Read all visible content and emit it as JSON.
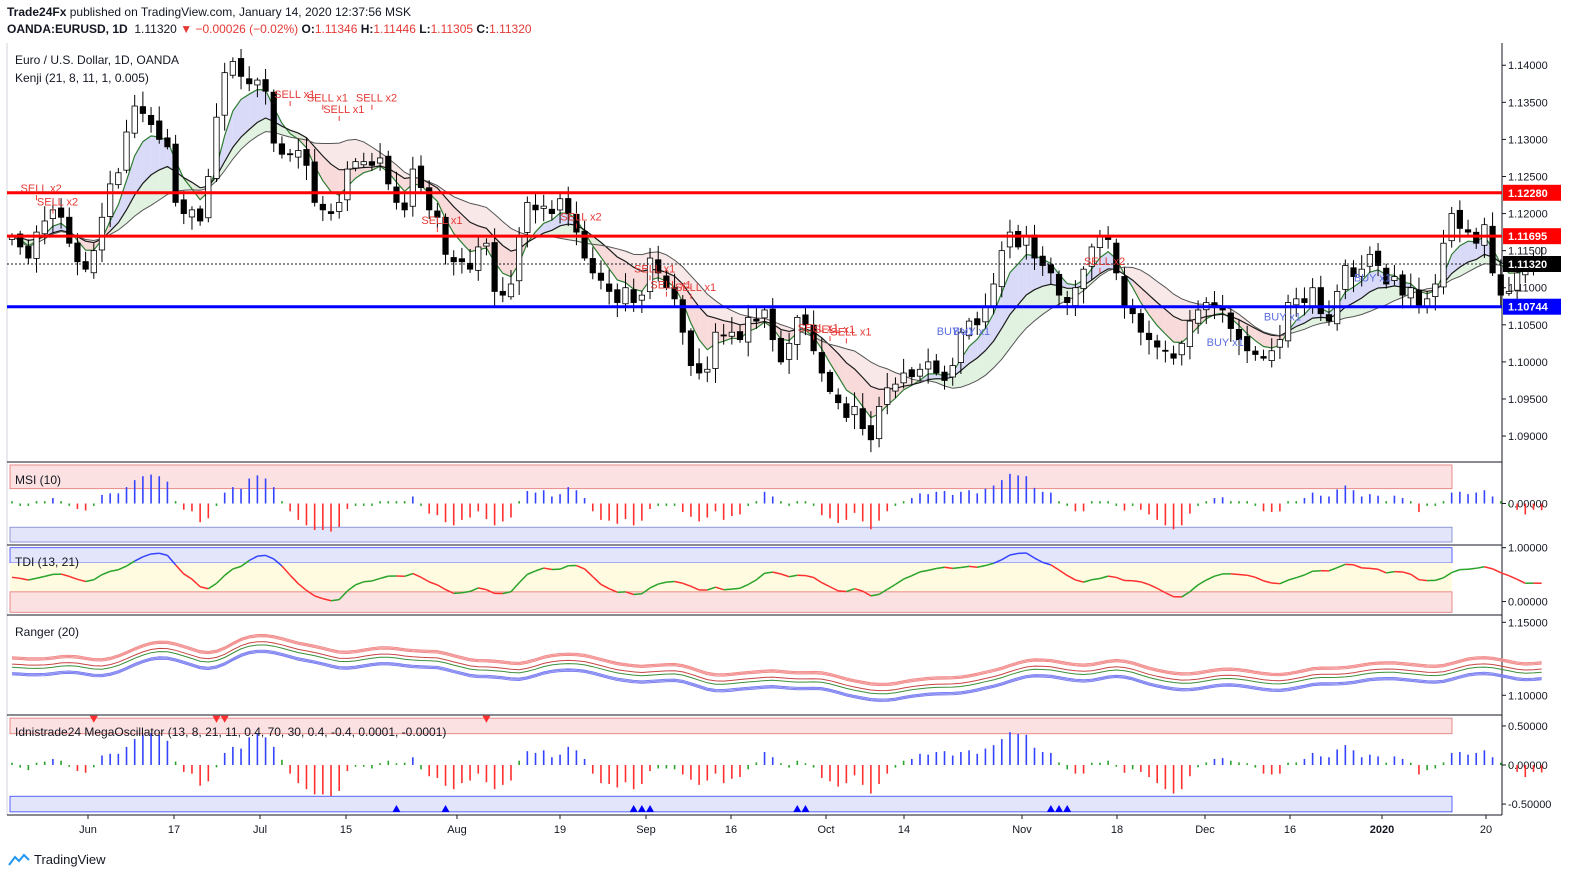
{
  "header": {
    "publisher": "Trade24Fx",
    "published_text": "published on TradingView.com, January 14, 2020 12:37:56 MSK",
    "symbol": "OANDA:EURUSD, 1D",
    "last": "1.11320",
    "change_arrow": "▼",
    "change": "−0.00026 (−0.02%)",
    "o_label": "O:",
    "o": "1.11346",
    "h_label": "H:",
    "h": "1.11446",
    "l_label": "L:",
    "l": "1.11305",
    "c_label": "C:",
    "c": "1.11320"
  },
  "footer": {
    "brand": "TradingView",
    "logo_icon": "tradingview-logo-icon"
  },
  "chart_data": [
    {
      "type": "candlestick",
      "title": "Euro / U.S. Dollar, 1D, OANDA",
      "indicator": "Kenji (21, 8, 11, 1, 0.005)",
      "ylim": [
        1.0865,
        1.143
      ],
      "y_ticks": [
        1.09,
        1.095,
        1.1,
        1.105,
        1.11,
        1.115,
        1.12,
        1.125,
        1.13,
        1.135,
        1.14
      ],
      "x_labels": [
        "Jun",
        "17",
        "Jul",
        "15",
        "Aug",
        "19",
        "Sep",
        "16",
        "Oct",
        "14",
        "Nov",
        "18",
        "Dec",
        "16",
        "2020",
        "20"
      ],
      "levels": [
        {
          "value": 1.1228,
          "label": "1.12280",
          "color": "#ff0000"
        },
        {
          "value": 1.11695,
          "label": "1.11695",
          "color": "#ff0000"
        },
        {
          "value": 1.10744,
          "label": "1.10744",
          "color": "#0000ff"
        }
      ],
      "last_price": {
        "value": 1.1132,
        "label": "1.11320"
      },
      "closes": [
        1.117,
        1.1155,
        1.114,
        1.1175,
        1.119,
        1.1205,
        1.1195,
        1.116,
        1.1135,
        1.1125,
        1.115,
        1.1195,
        1.124,
        1.1255,
        1.131,
        1.1345,
        1.1335,
        1.132,
        1.13,
        1.129,
        1.1215,
        1.12,
        1.1205,
        1.119,
        1.125,
        1.133,
        1.139,
        1.1405,
        1.1385,
        1.1375,
        1.138,
        1.1365,
        1.1295,
        1.128,
        1.128,
        1.1285,
        1.1265,
        1.1215,
        1.1205,
        1.12,
        1.1215,
        1.126,
        1.127,
        1.127,
        1.1265,
        1.1275,
        1.124,
        1.1215,
        1.1205,
        1.126,
        1.1235,
        1.1205,
        1.1195,
        1.1145,
        1.1135,
        1.1135,
        1.1125,
        1.1155,
        1.116,
        1.1095,
        1.109,
        1.1105,
        1.117,
        1.1215,
        1.1205,
        1.121,
        1.12,
        1.122,
        1.12,
        1.1175,
        1.114,
        1.112,
        1.111,
        1.1095,
        1.108,
        1.11,
        1.108,
        1.109,
        1.114,
        1.112,
        1.11,
        1.1085,
        1.104,
        1.0995,
        1.0985,
        1.099,
        1.104,
        1.1035,
        1.104,
        1.103,
        1.106,
        1.1055,
        1.107,
        1.103,
        1.1,
        1.1025,
        1.106,
        1.105,
        1.1015,
        1.0985,
        1.096,
        1.0945,
        1.0925,
        1.094,
        1.091,
        1.0895,
        1.094,
        1.0965,
        1.097,
        1.0985,
        1.098,
        1.099,
        1.1,
        1.0985,
        1.0975,
        1.0995,
        1.104,
        1.1055,
        1.105,
        1.1075,
        1.1105,
        1.115,
        1.1175,
        1.1155,
        1.117,
        1.114,
        1.113,
        1.112,
        1.109,
        1.108,
        1.11,
        1.1125,
        1.1155,
        1.117,
        1.1165,
        1.112,
        1.1075,
        1.1065,
        1.104,
        1.103,
        1.102,
        1.1015,
        1.1005,
        1.1025,
        1.1055,
        1.107,
        1.108,
        1.1075,
        1.107,
        1.1045,
        1.103,
        1.1015,
        1.101,
        1.1005,
        1.1015,
        1.103,
        1.108,
        1.1085,
        1.108,
        1.11,
        1.1065,
        1.1055,
        1.1095,
        1.113,
        1.1115,
        1.1125,
        1.1145,
        1.113,
        1.1105,
        1.1115,
        1.109,
        1.11,
        1.1075,
        1.1085,
        1.1105,
        1.116,
        1.12,
        1.118,
        1.1175,
        1.116,
        1.1185,
        1.112,
        1.109,
        1.1095,
        1.112,
        1.113,
        1.114,
        1.1132
      ]
    },
    {
      "type": "bar",
      "title": "MSI (10)",
      "ylim": [
        -0.07,
        0.07
      ],
      "y_ticks": [
        0.0
      ],
      "y_tick_labels": [
        "0.00000"
      ],
      "upper_band": [
        0.025,
        0.065
      ],
      "lower_band": [
        -0.065,
        -0.04
      ]
    },
    {
      "type": "line",
      "title": "TDI (13, 21)",
      "ylim": [
        -0.25,
        1.05
      ],
      "y_ticks": [
        0.0,
        1.0
      ],
      "y_tick_labels": [
        "0.00000",
        "1.00000"
      ]
    },
    {
      "type": "line",
      "title": "Ranger (20)",
      "ylim": [
        1.0865,
        1.155
      ],
      "y_ticks": [
        1.1,
        1.15
      ],
      "y_tick_labels": [
        "1.10000",
        "1.15000"
      ]
    },
    {
      "type": "bar",
      "title": "Idnistrade24 MegaOscillator (13, 8, 21, 11, 0.4, 70, 30, 0.4, -0.4, 0.0001, -0.0001)",
      "ylim": [
        -0.64,
        0.64
      ],
      "y_ticks": [
        0.5,
        0.0,
        -0.5
      ],
      "y_tick_labels": [
        "0.50000",
        "0.00000",
        "-0.50000"
      ],
      "upper_band": [
        0.4,
        0.6
      ],
      "lower_band": [
        -0.6,
        -0.4
      ]
    }
  ],
  "annotations": {
    "sell": [
      {
        "i": 3,
        "text": "SELL x2",
        "price": 1.1218
      },
      {
        "i": 5,
        "text": "SELL x2",
        "price": 1.12
      },
      {
        "i": 34,
        "text": "SELL x1",
        "price": 1.1345
      },
      {
        "i": 38,
        "text": "SELL x1",
        "price": 1.134
      },
      {
        "i": 40,
        "text": "SELL x1",
        "price": 1.1325
      },
      {
        "i": 44,
        "text": "SELL x2",
        "price": 1.134
      },
      {
        "i": 52,
        "text": "SELL x1",
        "price": 1.1175
      },
      {
        "i": 69,
        "text": "SELL x2",
        "price": 1.118
      },
      {
        "i": 78,
        "text": "SELL x1",
        "price": 1.111
      },
      {
        "i": 80,
        "text": "SELL x1",
        "price": 1.1088
      },
      {
        "i": 83,
        "text": "SELL x1",
        "price": 1.1085
      },
      {
        "i": 98,
        "text": "SELL x1",
        "price": 1.103
      },
      {
        "i": 100,
        "text": "SELL x1",
        "price": 1.1028
      },
      {
        "i": 102,
        "text": "SELL x1",
        "price": 1.1025
      },
      {
        "i": 133,
        "text": "SELL x2",
        "price": 1.112
      }
    ],
    "buy": [
      {
        "i": 115,
        "text": "BUY x1",
        "price": 1.1055
      },
      {
        "i": 117,
        "text": "BUY x1",
        "price": 1.1055
      },
      {
        "i": 148,
        "text": "BUY x1",
        "price": 1.104
      },
      {
        "i": 155,
        "text": "BUY x1",
        "price": 1.1075
      },
      {
        "i": 166,
        "text": "BUY x1",
        "price": 1.1127
      }
    ]
  },
  "colors": {
    "up": "#ffffff",
    "down": "#000000",
    "wick": "#000000",
    "resistance": "#ff0000",
    "support": "#0000ff",
    "sell_text": "#e53935",
    "buy_text": "#5b6ee1",
    "bull": "#3343ff",
    "bear": "#ff2f2f",
    "neutral": "#29a329"
  }
}
